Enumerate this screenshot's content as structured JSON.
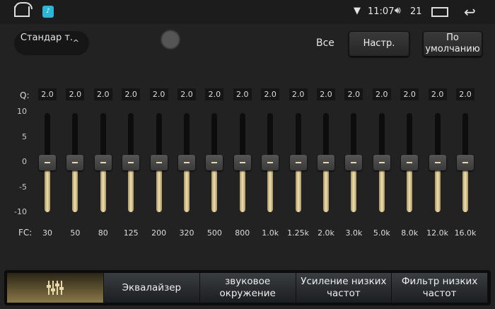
{
  "status_bar": {
    "time": "11:07",
    "volume": "21",
    "icons": [
      "home-icon",
      "equalizer-app-icon",
      "wifi-icon",
      "volume-icon",
      "recent-apps-icon",
      "back-icon"
    ]
  },
  "header": {
    "preset": "Стандар т.",
    "all_label": "Все",
    "settings_button": "Настр.",
    "default_button": "По умолчанию"
  },
  "eq": {
    "q_label": "Q:",
    "fc_label": "FC:",
    "scale": [
      "10",
      "5",
      "0",
      "-5",
      "-10"
    ],
    "range": [
      -10,
      10
    ],
    "bands": [
      {
        "fc": "30",
        "q": "2.0",
        "gain": 0
      },
      {
        "fc": "50",
        "q": "2.0",
        "gain": 0
      },
      {
        "fc": "80",
        "q": "2.0",
        "gain": 0
      },
      {
        "fc": "125",
        "q": "2.0",
        "gain": 0
      },
      {
        "fc": "200",
        "q": "2.0",
        "gain": 0
      },
      {
        "fc": "320",
        "q": "2.0",
        "gain": 0
      },
      {
        "fc": "500",
        "q": "2.0",
        "gain": 0
      },
      {
        "fc": "800",
        "q": "2.0",
        "gain": 0
      },
      {
        "fc": "1.0k",
        "q": "2.0",
        "gain": 0
      },
      {
        "fc": "1.25k",
        "q": "2.0",
        "gain": 0
      },
      {
        "fc": "2.0k",
        "q": "2.0",
        "gain": 0
      },
      {
        "fc": "3.0k",
        "q": "2.0",
        "gain": 0
      },
      {
        "fc": "5.0k",
        "q": "2.0",
        "gain": 0
      },
      {
        "fc": "8.0k",
        "q": "2.0",
        "gain": 0
      },
      {
        "fc": "12.0k",
        "q": "2.0",
        "gain": 0
      },
      {
        "fc": "16.0k",
        "q": "2.0",
        "gain": 0
      }
    ],
    "fill_color": "#e8d8a8"
  },
  "tabs": [
    {
      "label": "",
      "icon": "sliders-icon",
      "active": true
    },
    {
      "label": "Эквалайзер"
    },
    {
      "label": "звуковое окружение"
    },
    {
      "label": "Усиление низких частот"
    },
    {
      "label": "Фильтр низких частот"
    }
  ]
}
